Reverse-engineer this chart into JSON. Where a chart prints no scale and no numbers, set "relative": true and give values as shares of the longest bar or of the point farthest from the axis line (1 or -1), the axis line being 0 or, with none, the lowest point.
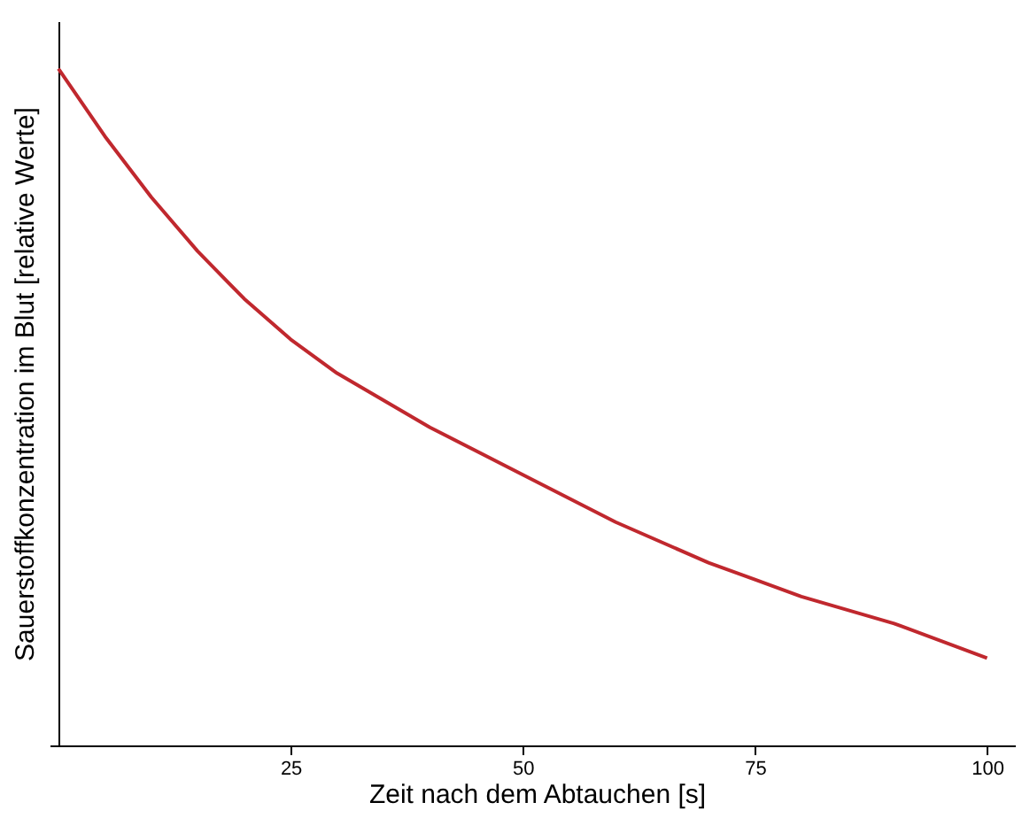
{
  "chart_data": {
    "type": "line",
    "xlabel": "Zeit nach dem Abtauchen [s]",
    "ylabel": "Sauerstoffkonzentration im Blut [relative Werte]",
    "relative": true,
    "x": [
      0,
      5,
      10,
      15,
      20,
      25,
      30,
      40,
      50,
      60,
      70,
      75,
      80,
      90,
      100
    ],
    "series": [
      {
        "color": "#c0282e",
        "values": [
          1,
          0.9,
          0.81,
          0.73,
          0.66,
          0.6,
          0.55,
          0.47,
          0.4,
          0.33,
          0.27,
          0.245,
          0.22,
          0.18,
          0.129
        ]
      }
    ],
    "xlim": [
      0,
      103
    ],
    "xticks": [
      25,
      50,
      75,
      100
    ],
    "grid": false,
    "legend": false,
    "marker": "none",
    "line_style": "solid"
  }
}
